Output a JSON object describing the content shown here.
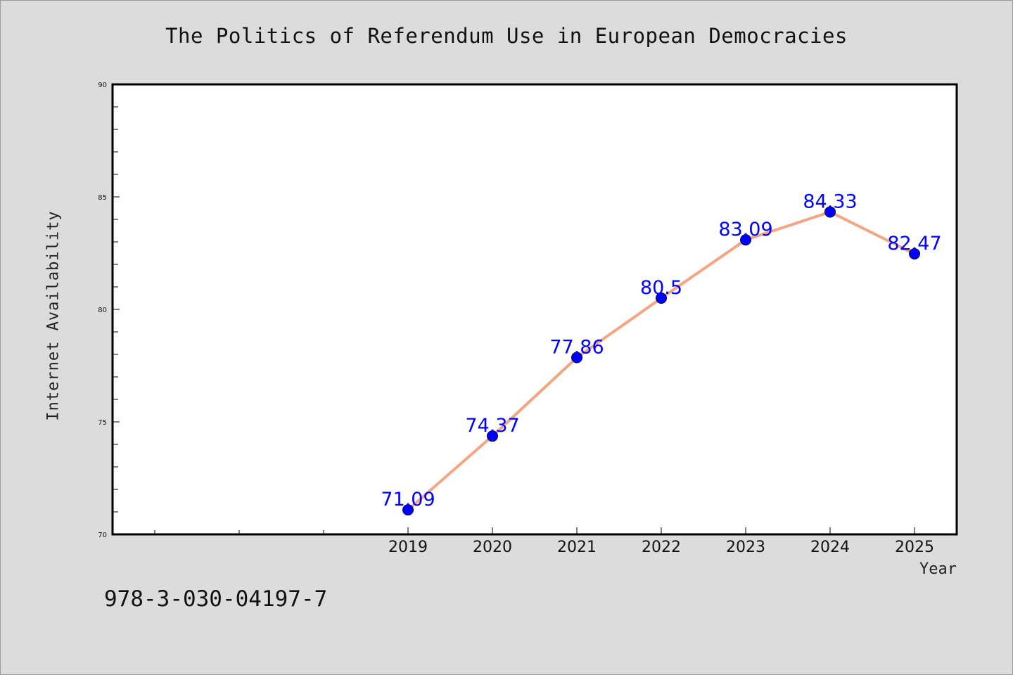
{
  "colors": {
    "background": "#dcdcdc",
    "plot_background": "#ffffff",
    "line": "#f4a582",
    "marker": "#0000ff",
    "data_label": "#0000ff"
  },
  "footer": {
    "isbn": "978-3-030-04197-7"
  },
  "chart_data": {
    "type": "line",
    "title": "The Politics of Referendum Use in European Democracies",
    "xlabel": "Year",
    "ylabel": "Internet Availability",
    "categories": [
      "2019",
      "2020",
      "2021",
      "2022",
      "2023",
      "2024",
      "2025"
    ],
    "series": [
      {
        "values": [
          71.09,
          74.37,
          77.86,
          80.5,
          83.09,
          84.33,
          82.47
        ],
        "data_labels": [
          "71.09",
          "74.37",
          "77.86",
          "80.5",
          "83.09",
          "84.33",
          "82.47"
        ]
      }
    ],
    "ylim": [
      70,
      90
    ],
    "yticks": [
      70,
      75,
      80,
      85,
      90
    ],
    "x_leading_empty_slots": 3,
    "grid": false,
    "legend": "none"
  }
}
